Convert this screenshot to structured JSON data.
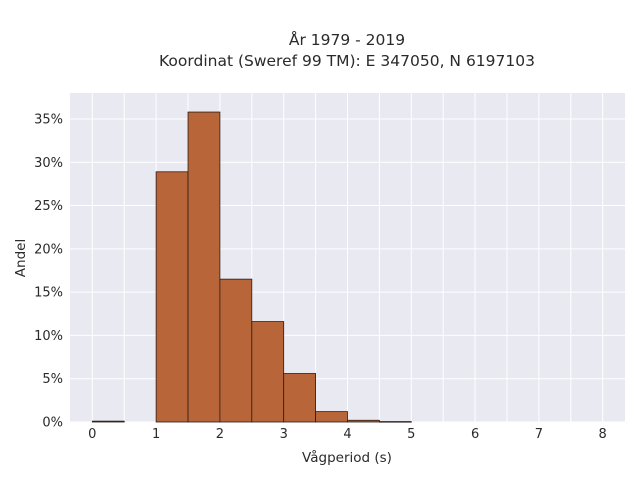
{
  "chart_data": {
    "type": "bar",
    "title_lines": [
      "År 1979 - 2019",
      "Koordinat (Sweref 99 TM): E 347050, N 6197103"
    ],
    "xlabel": "Vågperiod (s)",
    "ylabel": "Andel",
    "bin_width": 0.5,
    "bins": [
      {
        "x0": 0.0,
        "x1": 0.5,
        "value": 0.1
      },
      {
        "x0": 0.5,
        "x1": 1.0,
        "value": 0.0
      },
      {
        "x0": 1.0,
        "x1": 1.5,
        "value": 28.9
      },
      {
        "x0": 1.5,
        "x1": 2.0,
        "value": 35.8
      },
      {
        "x0": 2.0,
        "x1": 2.5,
        "value": 16.5
      },
      {
        "x0": 2.5,
        "x1": 3.0,
        "value": 11.6
      },
      {
        "x0": 3.0,
        "x1": 3.5,
        "value": 5.6
      },
      {
        "x0": 3.5,
        "x1": 4.0,
        "value": 1.2
      },
      {
        "x0": 4.0,
        "x1": 4.5,
        "value": 0.2
      },
      {
        "x0": 4.5,
        "x1": 5.0,
        "value": 0.05
      }
    ],
    "xlim": [
      -0.35,
      8.35
    ],
    "ylim": [
      0,
      38
    ],
    "x_ticks": [
      0,
      1,
      2,
      3,
      4,
      5,
      6,
      7,
      8
    ],
    "x_tick_labels": [
      "0",
      "1",
      "2",
      "3",
      "4",
      "5",
      "6",
      "7",
      "8"
    ],
    "y_ticks": [
      0,
      5,
      10,
      15,
      20,
      25,
      30,
      35
    ],
    "y_tick_labels": [
      "0%",
      "5%",
      "10%",
      "15%",
      "20%",
      "25%",
      "30%",
      "35%"
    ],
    "grid": true,
    "colors": {
      "bar_fill": "#b9653a",
      "bar_stroke": "#2b1d14",
      "plot_bg": "#e9e9f1",
      "grid": "#ffffff"
    }
  }
}
